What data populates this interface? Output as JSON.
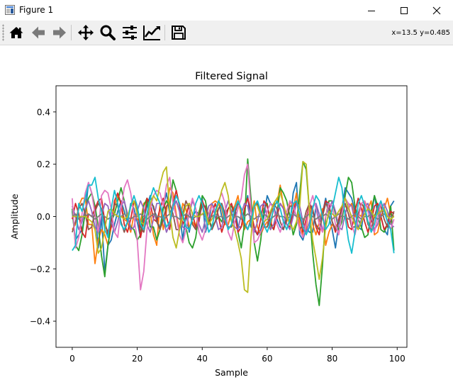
{
  "window": {
    "title": "Figure 1",
    "icon": "matplotlib-figure-icon",
    "controls": [
      "minimize-icon",
      "maximize-icon",
      "close-icon"
    ]
  },
  "toolbar": {
    "buttons": [
      {
        "name": "home-button",
        "icon": "home-icon"
      },
      {
        "name": "back-button",
        "icon": "arrow-left-icon"
      },
      {
        "name": "forward-button",
        "icon": "arrow-right-icon"
      },
      {
        "name": "pan-button",
        "icon": "move-icon"
      },
      {
        "name": "zoom-button",
        "icon": "magnifier-icon"
      },
      {
        "name": "subplots-button",
        "icon": "sliders-icon"
      },
      {
        "name": "edit-axis-button",
        "icon": "line-chart-icon"
      },
      {
        "name": "save-button",
        "icon": "floppy-disk-icon"
      }
    ],
    "coords": "x=13.5 y=0.485"
  },
  "chart_data": {
    "type": "line",
    "title": "Filtered Signal",
    "xlabel": "Sample",
    "ylabel": "Amplitude",
    "xlim": [
      -5,
      103
    ],
    "ylim": [
      -0.5,
      0.5
    ],
    "xticks": [
      0,
      20,
      40,
      60,
      80,
      100
    ],
    "yticks": [
      -0.4,
      -0.2,
      0.0,
      0.2,
      0.4
    ],
    "ytick_labels": [
      "−0.4",
      "−0.2",
      "0.0",
      "0.2",
      "0.4"
    ],
    "grid": false,
    "legend": "none",
    "series_count": 10,
    "colors": [
      "#1f77b4",
      "#ff7f0e",
      "#2ca02c",
      "#d62728",
      "#9467bd",
      "#8c564b",
      "#e377c2",
      "#7f7f7f",
      "#bcbd22",
      "#17becf"
    ],
    "series": [
      {
        "values": [
          0.02,
          -0.09,
          -0.07,
          -0.05,
          0.01,
          0.13,
          0.09,
          0.03,
          -0.12,
          0.0,
          -0.21,
          -0.11,
          -0.09,
          -0.03,
          0.02,
          0.06,
          0.02,
          -0.02,
          0.05,
          0.03,
          -0.02,
          -0.08,
          -0.01,
          0.04,
          0.08,
          0.03,
          0.0,
          -0.05,
          0.04,
          0.09,
          0.01,
          0.04,
          0.06,
          0.02,
          -0.09,
          0.01,
          -0.06,
          0.0,
          0.02,
          0.01,
          0.07,
          -0.06,
          -0.02,
          0.05,
          0.02,
          0.06,
          0.0,
          -0.03,
          -0.03,
          0.01,
          0.04,
          -0.04,
          -0.04,
          0.02,
          0.08,
          -0.04,
          -0.05,
          -0.07,
          -0.05,
          0.0,
          0.08,
          0.05,
          0.04,
          -0.01,
          -0.04,
          -0.05,
          0.01,
          -0.03,
          0.09,
          0.13,
          -0.07,
          -0.09,
          -0.04,
          -0.06,
          -0.06,
          0.04,
          -0.02,
          0.01,
          0.07,
          0.0,
          -0.05,
          -0.12,
          -0.03,
          0.03,
          0.11,
          0.09,
          0.07,
          0.02,
          -0.04,
          -0.05,
          0.05,
          0.03,
          0.0,
          0.08,
          0.01,
          0.0,
          -0.05,
          -0.07,
          0.04,
          0.06
        ]
      },
      {
        "values": [
          -0.05,
          -0.03,
          0.04,
          0.07,
          0.07,
          -0.03,
          -0.03,
          -0.18,
          -0.09,
          -0.05,
          -0.07,
          -0.11,
          -0.04,
          0.04,
          0.08,
          0.05,
          -0.01,
          -0.02,
          -0.06,
          0.01,
          -0.01,
          -0.02,
          0.05,
          0.06,
          0.02,
          -0.07,
          -0.11,
          0.05,
          -0.05,
          0.02,
          0.11,
          0.09,
          0.01,
          -0.05,
          0.05,
          0.03,
          -0.04,
          -0.02,
          -0.04,
          0.02,
          0.05,
          0.0,
          0.01,
          0.05,
          0.06,
          0.05,
          0.03,
          -0.03,
          -0.03,
          0.02,
          0.04,
          0.08,
          0.0,
          -0.05,
          -0.02,
          -0.01,
          0.06,
          -0.04,
          -0.07,
          -0.04,
          -0.02,
          -0.05,
          0.05,
          0.05,
          0.12,
          0.04,
          -0.02,
          0.06,
          0.03,
          0.09,
          -0.04,
          -0.07,
          -0.05,
          0.05,
          -0.03,
          -0.07,
          -0.02,
          0.03,
          -0.11,
          -0.06,
          -0.03,
          -0.04,
          -0.02,
          0.02,
          0.04,
          0.03,
          0.05,
          0.0,
          0.01,
          0.0,
          0.06,
          0.03,
          0.06,
          -0.07,
          -0.06,
          0.0,
          0.03,
          0.07,
          0.01,
          0.0
        ]
      },
      {
        "values": [
          0.03,
          -0.11,
          -0.13,
          -0.07,
          0.02,
          0.07,
          0.09,
          0.04,
          -0.04,
          -0.15,
          -0.23,
          -0.11,
          -0.02,
          0.01,
          0.06,
          0.11,
          0.06,
          0.0,
          -0.04,
          -0.05,
          -0.09,
          -0.07,
          0.04,
          0.07,
          -0.04,
          -0.04,
          -0.09,
          -0.05,
          0.03,
          0.06,
          0.04,
          0.14,
          0.1,
          0.04,
          0.0,
          -0.04,
          -0.1,
          -0.12,
          -0.08,
          0.01,
          0.08,
          0.06,
          -0.01,
          -0.04,
          -0.02,
          0.0,
          -0.02,
          0.01,
          0.03,
          0.04,
          0.01,
          -0.06,
          -0.12,
          -0.03,
          0.22,
          0.07,
          -0.1,
          -0.17,
          -0.09,
          0.03,
          0.05,
          -0.03,
          -0.05,
          0.01,
          0.11,
          0.09,
          0.06,
          0.0,
          -0.07,
          -0.03,
          0.09,
          0.21,
          0.18,
          0.02,
          -0.14,
          -0.26,
          -0.34,
          -0.19,
          0.0,
          0.06,
          0.06,
          0.01,
          -0.05,
          -0.02,
          0.08,
          0.15,
          0.13,
          0.04,
          -0.01,
          -0.04,
          -0.08,
          -0.07,
          0.02,
          0.08,
          0.04,
          -0.05,
          -0.06,
          -0.03,
          0.04,
          -0.13
        ]
      },
      {
        "values": [
          -0.01,
          0.05,
          0.01,
          -0.06,
          -0.08,
          0.01,
          0.0,
          0.03,
          0.06,
          0.07,
          -0.02,
          -0.07,
          -0.04,
          0.06,
          0.09,
          0.05,
          -0.03,
          -0.06,
          -0.01,
          0.06,
          0.04,
          -0.08,
          -0.02,
          0.07,
          0.05,
          -0.01,
          -0.02,
          0.03,
          0.07,
          0.0,
          -0.05,
          0.05,
          0.1,
          0.04,
          -0.03,
          0.0,
          0.05,
          0.01,
          -0.04,
          -0.02,
          0.06,
          0.03,
          -0.03,
          0.01,
          0.05,
          0.0,
          -0.06,
          -0.02,
          0.03,
          0.05,
          0.01,
          -0.06,
          -0.04,
          0.03,
          0.07,
          0.02,
          -0.04,
          -0.07,
          -0.01,
          0.06,
          0.04,
          -0.02,
          -0.05,
          0.0,
          0.05,
          0.03,
          -0.03,
          -0.04,
          0.02,
          0.06,
          0.0,
          -0.06,
          -0.01,
          0.05,
          0.03,
          -0.04,
          -0.07,
          0.01,
          0.06,
          0.05,
          -0.02,
          -0.06,
          -0.01,
          0.04,
          0.02,
          -0.04,
          -0.05,
          0.02,
          0.07,
          0.03,
          -0.02,
          -0.06,
          -0.02,
          0.04,
          0.05,
          0.0,
          -0.05,
          -0.03,
          0.02,
          0.01
        ]
      },
      {
        "values": [
          0.04,
          0.0,
          -0.05,
          -0.02,
          0.03,
          0.06,
          0.02,
          -0.04,
          -0.06,
          0.0,
          0.05,
          0.04,
          -0.02,
          -0.06,
          -0.02,
          0.04,
          0.06,
          0.01,
          -0.05,
          -0.04,
          0.02,
          0.06,
          0.03,
          -0.03,
          -0.06,
          -0.01,
          0.05,
          0.05,
          -0.01,
          -0.06,
          -0.03,
          0.03,
          0.06,
          0.02,
          -0.04,
          -0.05,
          0.01,
          0.06,
          0.03,
          -0.03,
          -0.06,
          -0.01,
          0.04,
          0.05,
          0.0,
          -0.05,
          -0.04,
          0.02,
          0.06,
          0.02,
          -0.04,
          -0.05,
          0.01,
          0.05,
          0.04,
          -0.02,
          -0.06,
          -0.02,
          0.04,
          0.05,
          0.0,
          -0.05,
          -0.03,
          0.02,
          0.05,
          0.03,
          -0.03,
          -0.05,
          0.0,
          0.05,
          0.04,
          -0.02,
          -0.06,
          -0.02,
          0.04,
          0.05,
          0.01,
          -0.05,
          -0.04,
          0.02,
          0.06,
          0.02,
          -0.04,
          -0.05,
          0.01,
          0.05,
          0.04,
          -0.02,
          -0.05,
          -0.01,
          0.04,
          0.05,
          0.0,
          -0.05,
          -0.03,
          0.02,
          0.05,
          0.02,
          -0.03,
          -0.04
        ]
      },
      {
        "values": [
          -0.06,
          -0.02,
          0.03,
          0.05,
          0.01,
          -0.05,
          -0.04,
          0.02,
          0.05,
          0.03,
          -0.03,
          -0.06,
          -0.01,
          0.05,
          0.04,
          -0.02,
          -0.06,
          -0.02,
          0.04,
          0.06,
          0.02,
          -0.04,
          -0.06,
          0.0,
          0.05,
          0.04,
          -0.02,
          -0.05,
          -0.01,
          0.04,
          0.05,
          0.01,
          -0.05,
          -0.05,
          0.01,
          0.06,
          0.03,
          -0.03,
          -0.05,
          0.0,
          0.04,
          0.04,
          -0.01,
          -0.05,
          -0.02,
          0.03,
          0.05,
          0.01,
          -0.04,
          -0.04,
          0.01,
          0.05,
          0.03,
          -0.03,
          -0.05,
          -0.01,
          0.04,
          0.05,
          0.01,
          -0.04,
          -0.04,
          0.01,
          0.05,
          0.03,
          -0.02,
          -0.05,
          -0.01,
          0.04,
          0.04,
          0.0,
          -0.05,
          -0.03,
          0.02,
          0.05,
          0.02,
          -0.03,
          -0.05,
          0.0,
          0.05,
          0.03,
          -0.02,
          -0.05,
          -0.02,
          0.03,
          0.05,
          0.01,
          -0.04,
          -0.04,
          0.01,
          0.05,
          0.03,
          -0.03,
          -0.05,
          0.0,
          0.04,
          0.04,
          -0.01,
          -0.04,
          -0.02,
          0.02
        ]
      },
      {
        "values": [
          0.07,
          -0.12,
          -0.08,
          0.01,
          0.09,
          0.13,
          0.09,
          0.01,
          -0.06,
          0.08,
          0.1,
          0.09,
          0.03,
          -0.06,
          -0.08,
          0.03,
          0.11,
          0.14,
          0.09,
          0.0,
          -0.09,
          -0.28,
          -0.21,
          -0.05,
          0.03,
          0.08,
          0.1,
          0.09,
          0.04,
          0.12,
          0.15,
          0.05,
          0.0,
          -0.07,
          -0.1,
          -0.05,
          0.02,
          0.07,
          0.03,
          -0.06,
          -0.09,
          -0.05,
          0.01,
          0.04,
          0.02,
          0.06,
          0.09,
          0.05,
          -0.06,
          -0.09,
          -0.02,
          0.03,
          0.07,
          0.16,
          0.2,
          0.03,
          -0.1,
          -0.09,
          -0.06,
          -0.03,
          0.02,
          0.05,
          0.03,
          -0.03,
          -0.06,
          -0.02,
          0.02,
          0.06,
          0.04,
          0.0,
          -0.05,
          -0.08,
          -0.03,
          0.04,
          0.08,
          0.03,
          -0.03,
          -0.06,
          0.0,
          0.05,
          0.04,
          -0.03,
          -0.07,
          0.01,
          0.07,
          0.05,
          -0.03,
          -0.07,
          -0.01,
          0.05,
          0.06,
          0.02,
          -0.04,
          -0.06,
          0.0,
          0.05,
          0.03,
          -0.02,
          -0.05,
          -0.01
        ]
      },
      {
        "values": [
          0.0,
          0.01,
          -0.01,
          0.0,
          0.0,
          0.01,
          0.0,
          -0.01,
          0.0,
          0.01,
          0.0,
          -0.01,
          0.0,
          0.01,
          0.0,
          0.0,
          0.01,
          0.0,
          -0.01,
          0.0,
          0.0,
          0.01,
          0.0,
          -0.01,
          0.0,
          0.01,
          0.0,
          0.0,
          -0.01,
          0.0,
          0.01,
          0.0,
          0.0,
          -0.01,
          0.0,
          0.01,
          0.0,
          -0.01,
          0.0,
          0.0,
          0.01,
          0.0,
          -0.01,
          0.0,
          0.01,
          0.0,
          0.0,
          -0.01,
          0.0,
          0.01,
          0.0,
          0.0,
          -0.01,
          0.0,
          0.01,
          0.0,
          -0.01,
          0.0,
          0.0,
          0.01,
          0.0,
          -0.01,
          0.0,
          0.01,
          0.0,
          0.0,
          -0.01,
          0.0,
          0.01,
          0.0,
          0.0,
          -0.01,
          0.0,
          0.01,
          0.0,
          -0.01,
          0.0,
          0.0,
          0.01,
          0.0,
          -0.01,
          0.0,
          0.01,
          0.0,
          0.0,
          -0.01,
          0.0,
          0.01,
          0.0,
          -0.01,
          0.0,
          0.0,
          0.01,
          0.0,
          -0.01,
          0.0,
          0.01,
          0.0,
          0.0,
          0.0
        ]
      },
      {
        "values": [
          0.0,
          0.0,
          0.0,
          0.0,
          0.0,
          -0.01,
          -0.02,
          -0.05,
          -0.14,
          -0.12,
          -0.05,
          0.02,
          0.03,
          0.01,
          0.0,
          0.0,
          -0.01,
          0.0,
          0.04,
          0.06,
          0.01,
          -0.02,
          -0.03,
          0.0,
          0.05,
          0.08,
          0.06,
          0.12,
          0.17,
          0.19,
          0.02,
          -0.08,
          -0.12,
          -0.05,
          0.0,
          0.04,
          0.05,
          0.01,
          0.0,
          0.0,
          0.01,
          0.02,
          -0.03,
          -0.01,
          0.01,
          0.05,
          0.1,
          0.13,
          0.08,
          -0.02,
          -0.05,
          -0.1,
          -0.16,
          -0.28,
          -0.29,
          -0.08,
          0.05,
          0.04,
          0.0,
          -0.02,
          -0.01,
          0.02,
          0.05,
          0.07,
          0.09,
          0.05,
          0.0,
          -0.03,
          -0.05,
          -0.02,
          0.04,
          0.21,
          0.2,
          0.02,
          -0.09,
          -0.16,
          -0.24,
          -0.16,
          -0.04,
          0.02,
          0.01,
          0.0,
          0.02,
          0.04,
          0.07,
          0.03,
          0.0,
          -0.03,
          -0.05,
          -0.02,
          0.01,
          0.03,
          0.02,
          0.0,
          0.01,
          0.02,
          0.03,
          0.0,
          -0.01,
          0.0
        ]
      },
      {
        "values": [
          -0.13,
          -0.11,
          0.05,
          0.02,
          0.07,
          0.12,
          0.12,
          0.15,
          0.07,
          0.02,
          -0.05,
          -0.08,
          0.03,
          0.1,
          0.05,
          -0.03,
          -0.05,
          -0.02,
          0.04,
          0.08,
          0.04,
          -0.03,
          -0.05,
          0.01,
          0.07,
          0.11,
          0.08,
          0.05,
          0.0,
          -0.04,
          -0.02,
          0.04,
          0.08,
          0.05,
          0.01,
          -0.04,
          -0.05,
          -0.01,
          0.05,
          0.08,
          0.05,
          0.0,
          -0.06,
          -0.04,
          0.02,
          0.06,
          0.04,
          -0.01,
          -0.05,
          -0.03,
          0.03,
          0.06,
          0.03,
          -0.02,
          -0.05,
          -0.02,
          0.04,
          0.06,
          0.02,
          -0.03,
          -0.06,
          -0.02,
          0.03,
          0.06,
          0.03,
          -0.02,
          -0.05,
          -0.01,
          0.05,
          0.06,
          0.01,
          -0.04,
          -0.07,
          -0.04,
          0.03,
          0.08,
          0.06,
          0.0,
          -0.05,
          -0.03,
          0.03,
          0.09,
          0.15,
          0.11,
          0.0,
          -0.09,
          -0.14,
          -0.06,
          0.05,
          0.08,
          0.04,
          -0.02,
          -0.06,
          -0.03,
          0.03,
          0.06,
          0.02,
          -0.02,
          -0.05,
          -0.14
        ]
      }
    ]
  }
}
